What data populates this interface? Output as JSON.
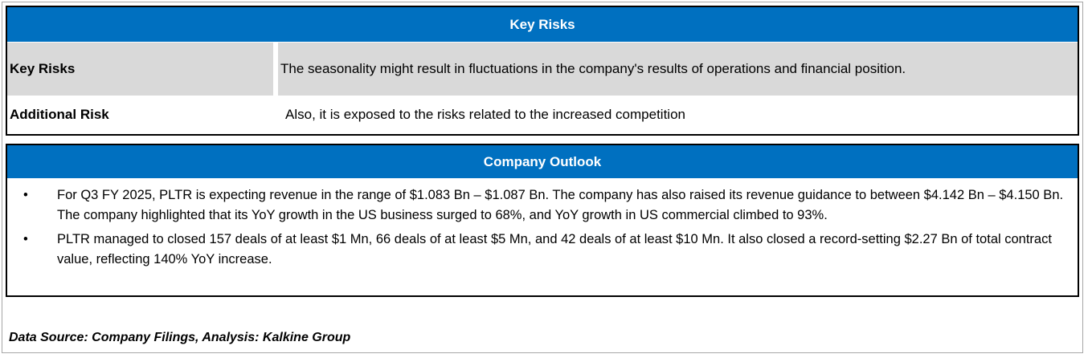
{
  "key_risks": {
    "header": "Key Risks",
    "rows": [
      {
        "label": "Key Risks",
        "value": "The seasonality might result in fluctuations in the company's results of operations and financial position."
      },
      {
        "label": "Additional Risk",
        "value": "Also, it is exposed to the risks related to the increased competition"
      }
    ]
  },
  "company_outlook": {
    "header": "Company Outlook",
    "bullet_glyph": "•",
    "bullets": [
      "For Q3 FY 2025, PLTR is expecting revenue in the range of $1.083 Bn – $1.087 Bn. The company has also raised its revenue guidance to between $4.142 Bn – $4.150 Bn. The company highlighted that its YoY growth in the US business surged to 68%, and YoY growth in US commercial climbed to 93%.",
      "PLTR managed to closed 157 deals of at least $1 Mn, 66 deals of at least $5 Mn, and 42 deals of at least $10 Mn. It also closed a record-setting $2.27 Bn of total contract value, reflecting 140% YoY increase."
    ]
  },
  "footer": {
    "source": "Data Source: Company Filings, Analysis: Kalkine Group"
  },
  "colors": {
    "header_blue": "#0070c0",
    "row_grey": "#d9d9d9"
  }
}
